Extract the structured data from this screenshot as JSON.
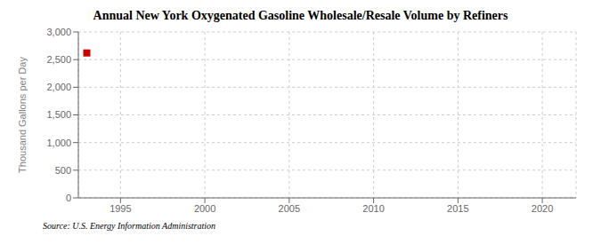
{
  "chart_data": {
    "type": "scatter",
    "title": "Annual New York Oxygenated Gasoline Wholesale/Resale Volume by Refiners",
    "ylabel": "Thousand Gallons per Day",
    "source": "Source: U.S. Energy Information Administration",
    "x": [
      1993
    ],
    "values": [
      2620
    ],
    "color": "#cc0000",
    "marker": "square",
    "xlim": [
      1992.5,
      2022
    ],
    "ylim": [
      0,
      3000
    ],
    "xticks": [
      1995,
      2000,
      2005,
      2010,
      2015,
      2020
    ],
    "yticks": [
      0,
      500,
      {
        "value": 1000,
        "label": "1,000"
      },
      {
        "value": 1500,
        "label": "1,500"
      },
      {
        "value": 2000,
        "label": "2,000"
      },
      {
        "value": 2500,
        "label": "2,500"
      },
      {
        "value": 3000,
        "label": "3,000"
      }
    ],
    "grid": true
  }
}
